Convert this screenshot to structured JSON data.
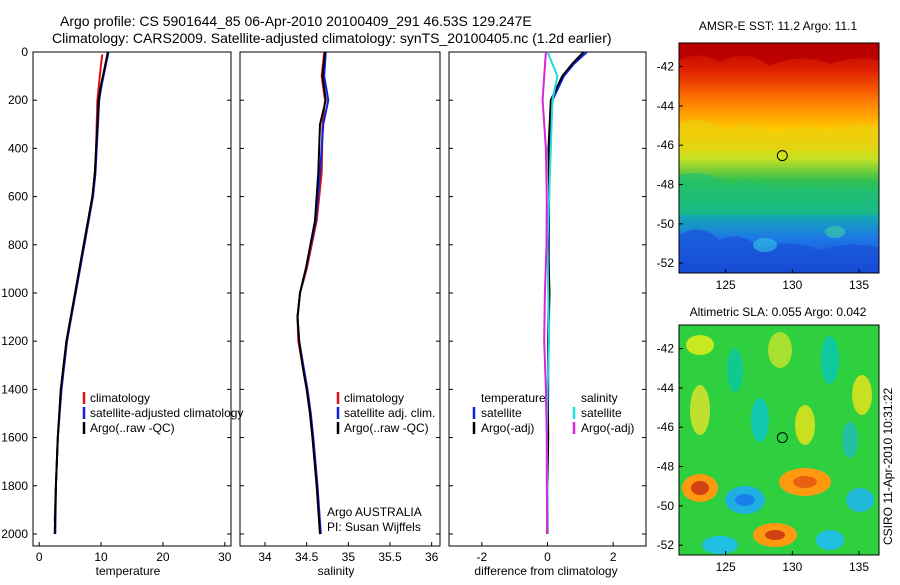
{
  "title_line1": "Argo profile: CS 5901644_85 06-Apr-2010 20100409_291 46.53S 129.247E",
  "title_line2": "Climatology: CARS2009. Satellite-adjusted climatology: synTS_20100405.nc (1.2d earlier)",
  "credit": {
    "org": "Argo AUSTRALIA",
    "pi": "PI: Susan Wijffels"
  },
  "timestamp": "CSIRO 11-Apr-2010 10:31:22",
  "colors": {
    "climatology": "#dd1111",
    "satellite": "#1122dd",
    "argo": "#000000",
    "cyan": "#22dddd",
    "magenta": "#dd22dd"
  },
  "chart_data": [
    {
      "type": "line",
      "title": "",
      "xlabel": "temperature",
      "ylabel": "",
      "xlim": [
        -1,
        31
      ],
      "ylim": [
        2050,
        0
      ],
      "x_ticks": [
        "0",
        "10",
        "20",
        "30"
      ],
      "y_ticks": [
        "0",
        "200",
        "400",
        "600",
        "800",
        "1000",
        "1200",
        "1400",
        "1600",
        "1800",
        "2000"
      ],
      "legend": [
        "climatology",
        "satellite-adjusted climatology",
        "Argo(..raw -QC)"
      ],
      "series": [
        {
          "name": "climatology",
          "color": "#dd1111",
          "depth": [
            10,
            50,
            100,
            150,
            200,
            300,
            400,
            500,
            600,
            800,
            1000,
            1200,
            1400,
            1600,
            1800,
            1950
          ],
          "values": [
            10.2,
            10.0,
            9.8,
            9.6,
            9.4,
            9.3,
            9.2,
            9.0,
            8.6,
            7.2,
            5.8,
            4.4,
            3.5,
            3.0,
            2.7,
            2.5
          ]
        },
        {
          "name": "satellite-adjusted climatology",
          "color": "#1122dd",
          "depth": [
            0,
            50,
            100,
            150,
            200,
            300,
            400,
            500,
            600,
            800,
            1000,
            1200,
            1400,
            1600,
            1800,
            2000
          ],
          "values": [
            11.2,
            10.8,
            10.4,
            10.0,
            9.7,
            9.5,
            9.3,
            9.1,
            8.7,
            7.3,
            5.9,
            4.5,
            3.6,
            3.0,
            2.7,
            2.6
          ]
        },
        {
          "name": "Argo(..raw -QC)",
          "color": "#000000",
          "depth": [
            0,
            50,
            100,
            150,
            200,
            300,
            400,
            500,
            600,
            800,
            1000,
            1200,
            1400,
            1600,
            1800,
            2000
          ],
          "values": [
            11.1,
            10.7,
            10.3,
            9.9,
            9.6,
            9.4,
            9.2,
            9.0,
            8.6,
            7.2,
            5.8,
            4.4,
            3.5,
            3.0,
            2.7,
            2.5
          ]
        }
      ]
    },
    {
      "type": "line",
      "title": "",
      "xlabel": "salinity",
      "ylabel": "",
      "xlim": [
        33.7,
        36.1
      ],
      "ylim": [
        2050,
        0
      ],
      "x_ticks": [
        "34",
        "34.5",
        "35",
        "35.5",
        "36"
      ],
      "legend": [
        "climatology",
        "satellite adj. clim.",
        "Argo(..raw -QC)"
      ],
      "series": [
        {
          "name": "climatology",
          "color": "#dd1111",
          "depth": [
            0,
            100,
            200,
            300,
            500,
            700,
            900,
            1000,
            1100,
            1200,
            1300,
            1400,
            1500,
            1600,
            1800,
            2000
          ],
          "values": [
            34.71,
            34.68,
            34.72,
            34.69,
            34.68,
            34.62,
            34.5,
            34.42,
            34.39,
            34.4,
            34.45,
            34.5,
            34.54,
            34.57,
            34.62,
            34.66
          ]
        },
        {
          "name": "satellite adj. clim.",
          "color": "#1122dd",
          "depth": [
            0,
            100,
            200,
            300,
            500,
            700,
            900,
            1000,
            1100,
            1200,
            1300,
            1400,
            1500,
            1600,
            1800,
            2000
          ],
          "values": [
            34.73,
            34.71,
            34.76,
            34.7,
            34.66,
            34.61,
            34.49,
            34.42,
            34.39,
            34.41,
            34.46,
            34.51,
            34.55,
            34.58,
            34.63,
            34.67
          ]
        },
        {
          "name": "Argo(..raw -QC)",
          "color": "#000000",
          "depth": [
            0,
            100,
            200,
            300,
            500,
            700,
            900,
            1000,
            1100,
            1200,
            1300,
            1400,
            1500,
            1600,
            1800,
            2000
          ],
          "values": [
            34.72,
            34.69,
            34.73,
            34.66,
            34.64,
            34.6,
            34.49,
            34.42,
            34.39,
            34.41,
            34.45,
            34.5,
            34.54,
            34.57,
            34.62,
            34.66
          ]
        }
      ]
    },
    {
      "type": "line",
      "title": "",
      "xlabel": "difference from climatology",
      "ylabel": "",
      "xlim": [
        -3,
        3
      ],
      "ylim": [
        2050,
        0
      ],
      "x_ticks": [
        "-2",
        "0",
        "2"
      ],
      "legend_left_title": "temperature",
      "legend_right_title": "salinity",
      "legend": [
        "satellite",
        "Argo(-adj)",
        "satellite",
        "Argo(-adj)"
      ],
      "series": [
        {
          "name": "temperature satellite",
          "color": "#1122dd",
          "depth": [
            0,
            50,
            100,
            200,
            400,
            600,
            800,
            1000,
            1200,
            1400,
            1600,
            1800,
            2000
          ],
          "values": [
            1.2,
            0.8,
            0.5,
            0.15,
            0.06,
            0.05,
            0.04,
            0.03,
            0.02,
            0.02,
            0.01,
            0.0,
            0.0
          ]
        },
        {
          "name": "temperature Argo(-adj)",
          "color": "#000000",
          "depth": [
            0,
            50,
            100,
            200,
            400,
            600,
            800,
            1000,
            1200,
            1400,
            1600,
            1800,
            2000
          ],
          "values": [
            1.1,
            0.75,
            0.45,
            0.1,
            0.03,
            0.05,
            0.02,
            0.06,
            0.03,
            0.01,
            0.02,
            0.0,
            -0.01
          ]
        },
        {
          "name": "salinity satellite",
          "color": "#22dddd",
          "depth": [
            0,
            100,
            200,
            400,
            600,
            800,
            1000,
            1200,
            1400,
            1600,
            1800,
            2000
          ],
          "values": [
            0.0,
            0.3,
            0.15,
            0.1,
            0.05,
            0.0,
            0.02,
            0.05,
            0.0,
            -0.02,
            0.0,
            0.01
          ]
        },
        {
          "name": "salinity Argo(-adj)",
          "color": "#dd22dd",
          "depth": [
            0,
            100,
            200,
            400,
            600,
            800,
            1000,
            1200,
            1400,
            1600,
            1800,
            2000
          ],
          "values": [
            -0.05,
            -0.1,
            -0.15,
            -0.05,
            -0.02,
            -0.03,
            -0.08,
            -0.1,
            -0.05,
            -0.02,
            -0.02,
            0.0
          ]
        }
      ]
    },
    {
      "type": "heatmap",
      "title": "AMSR-E SST: 11.2 Argo: 11.1",
      "xlim": [
        121.5,
        136.5
      ],
      "ylim": [
        -52.5,
        -40.8
      ],
      "x_ticks": [
        "125",
        "130",
        "135"
      ],
      "y_ticks": [
        "-42",
        "-44",
        "-46",
        "-48",
        "-50",
        "-52"
      ],
      "marker": {
        "lon": 129.247,
        "lat": -46.53
      }
    },
    {
      "type": "heatmap",
      "title": "Altimetric SLA: 0.055 Argo: 0.042",
      "xlim": [
        121.5,
        136.5
      ],
      "ylim": [
        -52.5,
        -40.8
      ],
      "x_ticks": [
        "125",
        "130",
        "135"
      ],
      "y_ticks": [
        "-42",
        "-44",
        "-46",
        "-48",
        "-50",
        "-52"
      ],
      "marker": {
        "lon": 129.247,
        "lat": -46.53
      }
    }
  ]
}
